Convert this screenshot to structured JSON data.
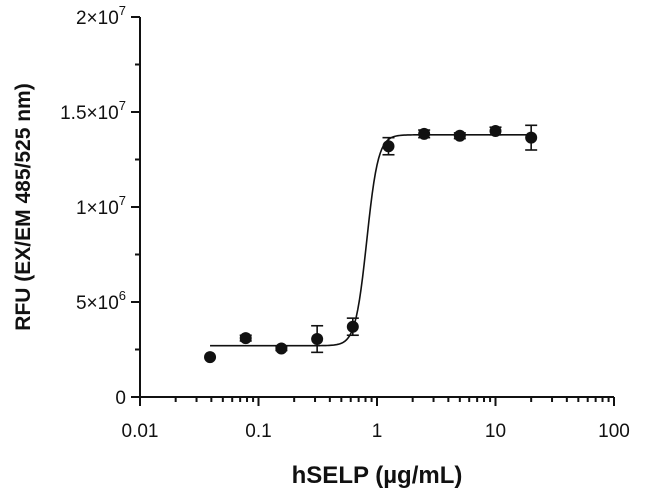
{
  "chart_data": {
    "type": "scatter",
    "xlabel": "hSELP (µg/mL)",
    "ylabel": "RFU (EX/EM 485/525 nm)",
    "x_scale": "log",
    "xlim": [
      0.01,
      100
    ],
    "ylim": [
      0,
      20000000
    ],
    "x_tick_labels": [
      "0.01",
      "0.1",
      "1",
      "10",
      "100"
    ],
    "x_tick_values": [
      0.01,
      0.1,
      1,
      10,
      100
    ],
    "y_tick_values": [
      0,
      5000000,
      10000000,
      15000000,
      20000000
    ],
    "y_tick_labels": [
      {
        "base": "0",
        "exp": ""
      },
      {
        "base": "5×10",
        "exp": "6"
      },
      {
        "base": "1×10",
        "exp": "7"
      },
      {
        "base": "1.5×10",
        "exp": "7"
      },
      {
        "base": "2×10",
        "exp": "7"
      }
    ],
    "points": [
      {
        "x": 0.039,
        "y": 2100000,
        "err": 0
      },
      {
        "x": 0.078,
        "y": 3100000,
        "err": 150000
      },
      {
        "x": 0.156,
        "y": 2550000,
        "err": 100000
      },
      {
        "x": 0.3125,
        "y": 3050000,
        "err": 700000
      },
      {
        "x": 0.625,
        "y": 3700000,
        "err": 450000
      },
      {
        "x": 1.25,
        "y": 13200000,
        "err": 450000
      },
      {
        "x": 2.5,
        "y": 13850000,
        "err": 200000
      },
      {
        "x": 5,
        "y": 13750000,
        "err": 150000
      },
      {
        "x": 10,
        "y": 14000000,
        "err": 200000
      },
      {
        "x": 20,
        "y": 13650000,
        "err": 650000
      }
    ],
    "fit": {
      "model": "4PL",
      "bottom": 2700000,
      "top": 13800000,
      "ec50": 0.82,
      "hill": 9
    },
    "grid": false,
    "legend": "none"
  }
}
